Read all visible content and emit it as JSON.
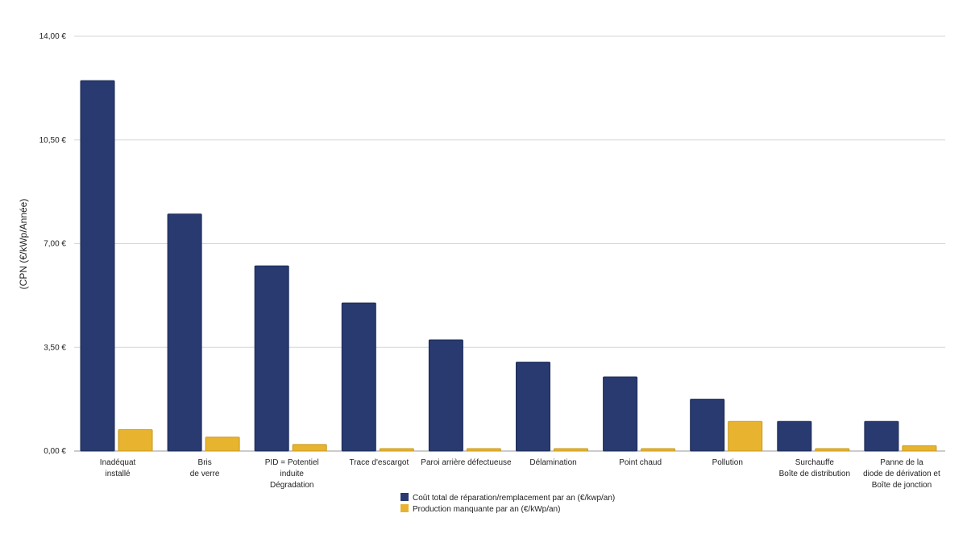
{
  "chart_data": {
    "type": "bar",
    "title": "",
    "xlabel": "",
    "ylabel": "(CPN (€/kWp/Année)",
    "ylim": [
      0,
      14
    ],
    "yticks": [
      0,
      3.5,
      7,
      10.5,
      14
    ],
    "ytick_labels": [
      "0,00 €",
      "3,50 €",
      "7,00 €",
      "10,50 €",
      "14,00 €"
    ],
    "grid": true,
    "legend_position": "bottom",
    "categories": [
      [
        "Inadéquat",
        "installé"
      ],
      [
        "Bris",
        "de verre"
      ],
      [
        "PID = Potentiel",
        "induite",
        "Dégradation"
      ],
      [
        "Trace d'escargot"
      ],
      [
        "Paroi arrière défectueuse"
      ],
      [
        "Délamination"
      ],
      [
        "Point chaud"
      ],
      [
        "Pollution"
      ],
      [
        "Surchauffe",
        "Boîte de distribution"
      ],
      [
        "Panne de la",
        "diode de dérivation et",
        "Boîte de jonction"
      ]
    ],
    "series": [
      {
        "name": "Coût total de réparation/remplacement par an (€/kwp/an)",
        "color": "#283a70",
        "values": [
          12.5,
          8.0,
          6.25,
          5.0,
          3.75,
          3.0,
          2.5,
          1.75,
          1.0,
          1.0
        ]
      },
      {
        "name": "Production manquante par an (€/kWp/an)",
        "color": "#e8b430",
        "values": [
          0.72,
          0.47,
          0.22,
          0.08,
          0.08,
          0.08,
          0.08,
          1.0,
          0.08,
          0.18
        ]
      }
    ]
  }
}
